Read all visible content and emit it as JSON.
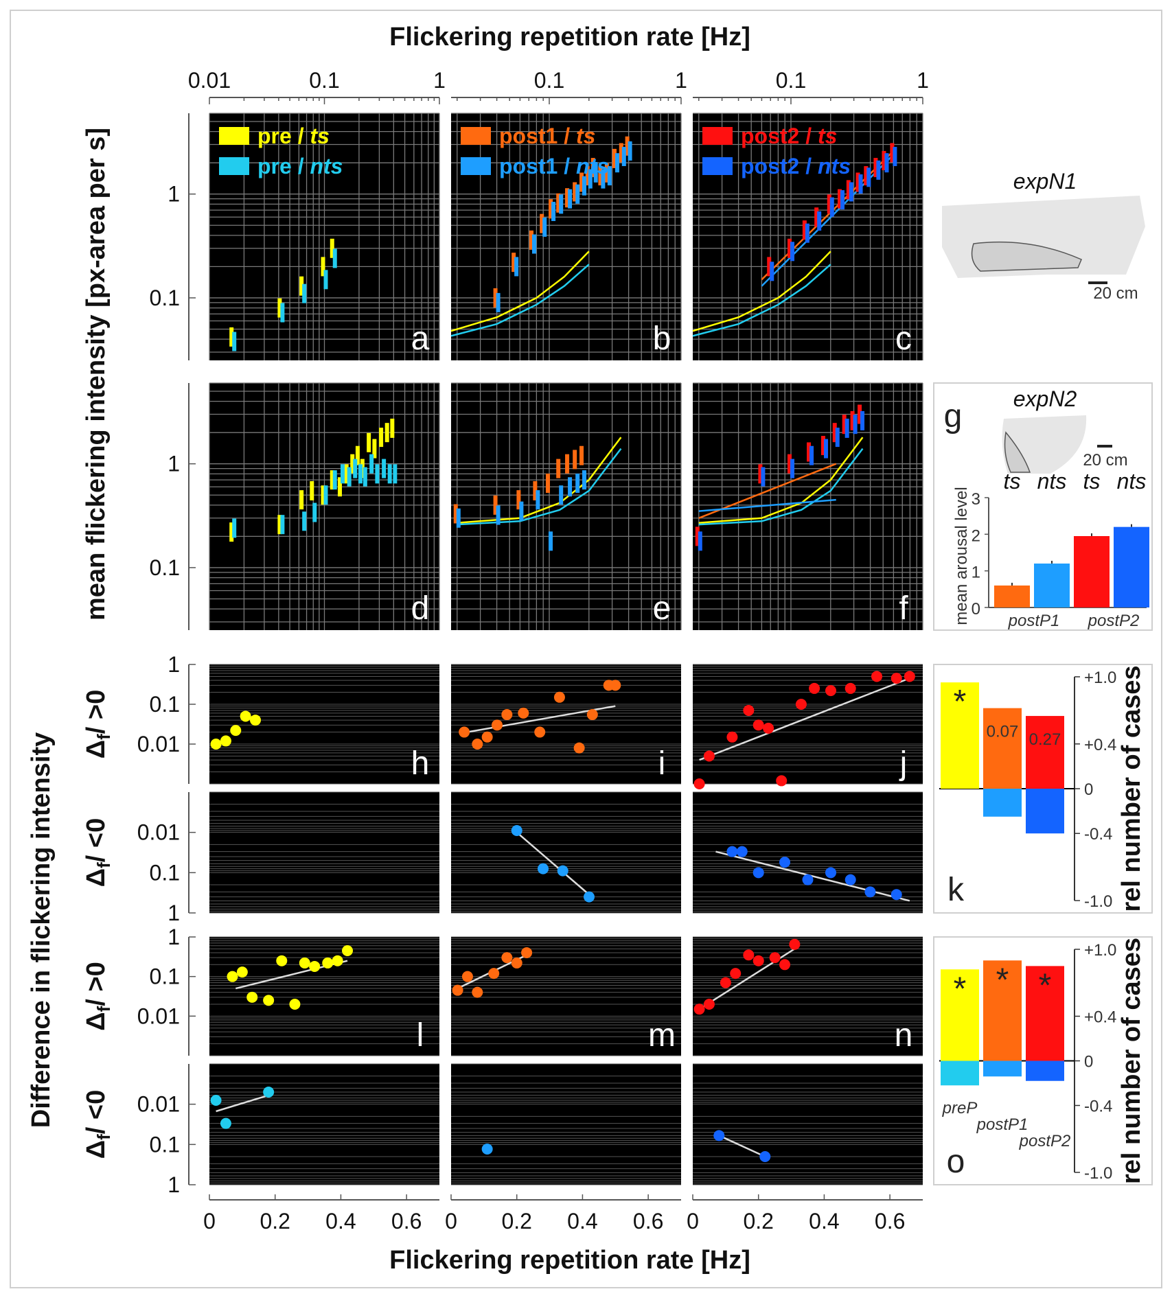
{
  "figure": {
    "top_xlabel": "Flickering repetition rate [Hz]",
    "bottom_xlabel": "Flickering repetition rate [Hz]",
    "ylabel_top": "mean flickering intensity [px-area per s]",
    "ylabel_bottom": "Difference in flickering intensity",
    "row_labels": [
      "Δf/ >0",
      "Δf/ <0",
      "Δf/ >0",
      "Δf/ <0"
    ],
    "top_ticks_col1": [
      "0.01",
      "0.1",
      "1"
    ],
    "top_ticks_col23": [
      "0.1",
      "1"
    ],
    "ytick_top": [
      "1",
      "0.1"
    ],
    "ytick_diff_pos": [
      "1",
      "0.1",
      "0.01"
    ],
    "ytick_diff_neg": [
      "0.01",
      "0.1",
      "1"
    ],
    "bottom_ticks": [
      "0",
      "0.2",
      "0.4",
      "0.6"
    ]
  },
  "colors": {
    "pre_ts": "#ffff00",
    "pre_nts": "#22ccee",
    "post1_ts": "#ff6a10",
    "post1_nts": "#1e9eff",
    "post2_ts": "#ff1010",
    "post2_nts": "#1464ff",
    "fit": "#dddddd"
  },
  "chart_data": [
    {
      "panel": "a",
      "type": "scatter",
      "xscale": "log",
      "yscale": "log",
      "legend": [
        {
          "name": "pre / ts",
          "prefix": "pre / ",
          "suffix": "ts",
          "color": "#ffff00"
        },
        {
          "name": "pre / nts",
          "prefix": "pre / ",
          "suffix": "nts",
          "color": "#22ccee"
        }
      ],
      "series": [
        {
          "name": "pre / ts",
          "x": [
            0.016,
            0.042,
            0.065,
            0.1,
            0.12
          ],
          "y": [
            0.042,
            0.08,
            0.13,
            0.2,
            0.3
          ]
        },
        {
          "name": "pre / nts",
          "x": [
            0.016,
            0.042,
            0.065,
            0.1,
            0.12
          ],
          "y": [
            0.038,
            0.072,
            0.11,
            0.15,
            0.24
          ]
        }
      ]
    },
    {
      "panel": "b",
      "type": "scatter",
      "xscale": "log",
      "yscale": "log",
      "legend": [
        {
          "name": "post1 / ts",
          "prefix": "post1 / ",
          "suffix": "ts",
          "color": "#ff6a10"
        },
        {
          "name": "post1 / nts",
          "prefix": "post1 / ",
          "suffix": "nts",
          "color": "#1e9eff"
        }
      ],
      "series": [
        {
          "name": "post1 / ts",
          "x": [
            0.04,
            0.055,
            0.075,
            0.09,
            0.105,
            0.12,
            0.14,
            0.16,
            0.18,
            0.2,
            0.22,
            0.25,
            0.28,
            0.32,
            0.36,
            0.4
          ],
          "y": [
            0.1,
            0.22,
            0.36,
            0.52,
            0.72,
            0.82,
            0.92,
            1.05,
            1.3,
            1.5,
            1.8,
            1.5,
            1.6,
            2.2,
            2.5,
            2.9
          ]
        },
        {
          "name": "post1 / nts",
          "x": [
            0.04,
            0.055,
            0.075,
            0.09,
            0.105,
            0.12,
            0.14,
            0.16,
            0.18,
            0.2,
            0.22,
            0.25,
            0.28,
            0.32,
            0.36,
            0.4
          ],
          "y": [
            0.09,
            0.2,
            0.33,
            0.48,
            0.68,
            0.8,
            0.9,
            1.0,
            1.2,
            1.4,
            1.6,
            1.4,
            1.5,
            2.0,
            2.3,
            2.6
          ]
        }
      ],
      "curves": [
        {
          "color": "#ffff00",
          "x": [
            0.018,
            0.04,
            0.08,
            0.13,
            0.2
          ],
          "y": [
            0.048,
            0.065,
            0.1,
            0.16,
            0.28
          ]
        },
        {
          "color": "#22ccee",
          "x": [
            0.018,
            0.04,
            0.08,
            0.13,
            0.2
          ],
          "y": [
            0.043,
            0.056,
            0.086,
            0.13,
            0.21
          ]
        }
      ]
    },
    {
      "panel": "c",
      "type": "scatter",
      "xscale": "log",
      "yscale": "log",
      "legend": [
        {
          "name": "post2 / ts",
          "prefix": "post2 / ",
          "suffix": "ts",
          "color": "#ff1010"
        },
        {
          "name": "post2 / nts",
          "prefix": "post2 / ",
          "suffix": "nts",
          "color": "#1464ff"
        }
      ],
      "series": [
        {
          "name": "post2 / ts",
          "x": [
            0.07,
            0.1,
            0.13,
            0.16,
            0.2,
            0.24,
            0.28,
            0.33,
            0.38,
            0.45,
            0.52,
            0.6
          ],
          "y": [
            0.2,
            0.3,
            0.45,
            0.6,
            0.8,
            0.9,
            1.1,
            1.3,
            1.5,
            1.8,
            2.1,
            2.5
          ]
        },
        {
          "name": "post2 / nts",
          "x": [
            0.07,
            0.1,
            0.13,
            0.16,
            0.2,
            0.24,
            0.28,
            0.33,
            0.38,
            0.45,
            0.52,
            0.6
          ],
          "y": [
            0.18,
            0.28,
            0.42,
            0.55,
            0.75,
            0.88,
            1.05,
            1.25,
            1.45,
            1.7,
            2.0,
            2.3
          ]
        }
      ],
      "curves": [
        {
          "color": "#ffff00",
          "x": [
            0.018,
            0.04,
            0.08,
            0.13,
            0.2
          ],
          "y": [
            0.048,
            0.065,
            0.1,
            0.16,
            0.28
          ]
        },
        {
          "color": "#22ccee",
          "x": [
            0.018,
            0.04,
            0.08,
            0.13,
            0.2
          ],
          "y": [
            0.043,
            0.056,
            0.086,
            0.13,
            0.21
          ]
        },
        {
          "color": "#ff6a10",
          "x": [
            0.06,
            0.6
          ],
          "y": [
            0.15,
            2.6
          ]
        },
        {
          "color": "#1e9eff",
          "x": [
            0.06,
            0.6
          ],
          "y": [
            0.13,
            2.4
          ]
        }
      ]
    },
    {
      "panel": "d",
      "type": "scatter",
      "xscale": "log",
      "yscale": "log",
      "series": [
        {
          "name": "pre / ts",
          "x": [
            0.016,
            0.042,
            0.065,
            0.08,
            0.1,
            0.12,
            0.14,
            0.16,
            0.18,
            0.2,
            0.22,
            0.25,
            0.28,
            0.32,
            0.36,
            0.4
          ],
          "y": [
            0.22,
            0.26,
            0.45,
            0.55,
            0.5,
            0.7,
            0.6,
            0.8,
            1.0,
            1.2,
            0.9,
            1.6,
            1.4,
            1.8,
            2.0,
            2.2
          ]
        },
        {
          "name": "pre / nts",
          "x": [
            0.016,
            0.042,
            0.065,
            0.08,
            0.1,
            0.12,
            0.14,
            0.16,
            0.18,
            0.2,
            0.22,
            0.25,
            0.28,
            0.32,
            0.36,
            0.4
          ],
          "y": [
            0.24,
            0.26,
            0.28,
            0.34,
            0.5,
            0.7,
            0.8,
            0.75,
            0.9,
            0.8,
            0.75,
            1.0,
            0.8,
            0.9,
            0.8,
            0.8
          ]
        }
      ]
    },
    {
      "panel": "e",
      "type": "scatter",
      "xscale": "log",
      "yscale": "log",
      "series": [
        {
          "name": "post1 / ts",
          "x": [
            0.02,
            0.04,
            0.06,
            0.08,
            0.1,
            0.12,
            0.14,
            0.16,
            0.18
          ],
          "y": [
            0.33,
            0.4,
            0.45,
            0.55,
            0.65,
            0.9,
            1.0,
            1.1,
            1.2
          ]
        },
        {
          "name": "post1 / nts",
          "x": [
            0.02,
            0.04,
            0.06,
            0.08,
            0.1,
            0.12,
            0.14,
            0.16,
            0.18
          ],
          "y": [
            0.3,
            0.32,
            0.35,
            0.45,
            0.18,
            0.5,
            0.6,
            0.65,
            0.7
          ]
        }
      ],
      "curves": [
        {
          "color": "#ffff00",
          "x": [
            0.02,
            0.06,
            0.12,
            0.2,
            0.35
          ],
          "y": [
            0.27,
            0.3,
            0.42,
            0.7,
            1.8
          ]
        },
        {
          "color": "#22ccee",
          "x": [
            0.02,
            0.06,
            0.12,
            0.2,
            0.35
          ],
          "y": [
            0.26,
            0.28,
            0.36,
            0.55,
            1.4
          ]
        }
      ]
    },
    {
      "panel": "f",
      "type": "scatter",
      "xscale": "log",
      "yscale": "log",
      "series": [
        {
          "name": "post2 / ts",
          "x": [
            0.02,
            0.06,
            0.1,
            0.14,
            0.18,
            0.22,
            0.26,
            0.3,
            0.34
          ],
          "y": [
            0.2,
            0.8,
            1.0,
            1.3,
            1.5,
            2.0,
            2.4,
            2.6,
            3.0
          ]
        },
        {
          "name": "post2 / nts",
          "x": [
            0.02,
            0.06,
            0.1,
            0.14,
            0.18,
            0.22,
            0.26,
            0.3,
            0.34
          ],
          "y": [
            0.18,
            0.75,
            0.9,
            1.2,
            1.4,
            1.8,
            2.2,
            2.4,
            2.6
          ]
        }
      ],
      "curves": [
        {
          "color": "#ffff00",
          "x": [
            0.02,
            0.06,
            0.12,
            0.2,
            0.35
          ],
          "y": [
            0.27,
            0.3,
            0.42,
            0.7,
            1.8
          ]
        },
        {
          "color": "#22ccee",
          "x": [
            0.02,
            0.06,
            0.12,
            0.2,
            0.35
          ],
          "y": [
            0.26,
            0.28,
            0.36,
            0.55,
            1.4
          ]
        },
        {
          "color": "#ff6a10",
          "x": [
            0.02,
            0.22
          ],
          "y": [
            0.3,
            1.0
          ]
        },
        {
          "color": "#1e9eff",
          "x": [
            0.02,
            0.22
          ],
          "y": [
            0.35,
            0.45
          ]
        }
      ]
    },
    {
      "panel": "g",
      "type": "bar",
      "title": "expN2",
      "ylabel": "mean arousal level",
      "categories": [
        "ts",
        "nts",
        "ts",
        "nts"
      ],
      "groups": [
        "postP1",
        "postP2"
      ],
      "values": [
        0.6,
        1.2,
        1.95,
        2.2
      ],
      "colors": [
        "#ff6a10",
        "#1e9eff",
        "#ff1010",
        "#1464ff"
      ],
      "ylim": [
        0,
        3
      ],
      "yticks": [
        "0",
        "1",
        "2",
        "3"
      ]
    },
    {
      "panel": "h",
      "type": "scatter",
      "color": "#ffff00",
      "x": [
        0.02,
        0.05,
        0.08,
        0.11,
        0.14
      ],
      "y": [
        0.01,
        0.012,
        0.022,
        0.05,
        0.04
      ],
      "fit": []
    },
    {
      "panel": "i",
      "type": "scatter",
      "color": "#ff6a10",
      "x": [
        0.04,
        0.08,
        0.11,
        0.14,
        0.17,
        0.22,
        0.27,
        0.33,
        0.39,
        0.43,
        0.48,
        0.5
      ],
      "y": [
        0.02,
        0.01,
        0.015,
        0.03,
        0.055,
        0.06,
        0.02,
        0.15,
        0.008,
        0.055,
        0.3,
        0.3
      ],
      "fit": [
        [
          0.05,
          0.02
        ],
        [
          0.5,
          0.09
        ]
      ]
    },
    {
      "panel": "j",
      "type": "scatter",
      "color": "#ff1010",
      "x": [
        0.02,
        0.05,
        0.12,
        0.17,
        0.2,
        0.23,
        0.27,
        0.33,
        0.37,
        0.42,
        0.48,
        0.56,
        0.62,
        0.66
      ],
      "y": [
        0.001,
        0.005,
        0.015,
        0.07,
        0.03,
        0.025,
        0.0012,
        0.1,
        0.25,
        0.22,
        0.25,
        0.5,
        0.45,
        0.5
      ],
      "fit": [
        [
          0.02,
          0.004
        ],
        [
          0.66,
          0.45
        ]
      ]
    },
    {
      "panel": "i2",
      "type": "scatter",
      "color": "#1e9eff",
      "x": [
        0.2,
        0.28,
        0.34,
        0.42
      ],
      "y": [
        0.009,
        0.08,
        0.09,
        0.4
      ],
      "fit": [
        [
          0.2,
          0.01
        ],
        [
          0.42,
          0.35
        ]
      ]
    },
    {
      "panel": "j2",
      "type": "scatter",
      "color": "#1464ff",
      "x": [
        0.12,
        0.15,
        0.2,
        0.28,
        0.35,
        0.42,
        0.48,
        0.54,
        0.62
      ],
      "y": [
        0.03,
        0.03,
        0.1,
        0.055,
        0.15,
        0.1,
        0.15,
        0.3,
        0.35
      ],
      "fit": [
        [
          0.07,
          0.03
        ],
        [
          0.66,
          0.5
        ]
      ]
    },
    {
      "panel": "l",
      "type": "scatter",
      "color": "#ffff00",
      "x": [
        0.07,
        0.1,
        0.13,
        0.18,
        0.22,
        0.26,
        0.29,
        0.32,
        0.36,
        0.39,
        0.42
      ],
      "y": [
        0.1,
        0.13,
        0.03,
        0.025,
        0.25,
        0.02,
        0.22,
        0.18,
        0.22,
        0.25,
        0.45
      ],
      "fit": [
        [
          0.08,
          0.05
        ],
        [
          0.42,
          0.25
        ]
      ]
    },
    {
      "panel": "m",
      "type": "scatter",
      "color": "#ff6a10",
      "x": [
        0.02,
        0.05,
        0.08,
        0.13,
        0.17,
        0.2,
        0.23
      ],
      "y": [
        0.045,
        0.1,
        0.04,
        0.12,
        0.3,
        0.22,
        0.4
      ],
      "fit": [
        [
          0.02,
          0.05
        ],
        [
          0.23,
          0.35
        ]
      ]
    },
    {
      "panel": "n",
      "type": "scatter",
      "color": "#ff1010",
      "x": [
        0.02,
        0.05,
        0.1,
        0.13,
        0.17,
        0.2,
        0.25,
        0.28,
        0.31
      ],
      "y": [
        0.015,
        0.02,
        0.07,
        0.12,
        0.35,
        0.25,
        0.3,
        0.2,
        0.65
      ],
      "fit": [
        [
          0.02,
          0.015
        ],
        [
          0.31,
          0.5
        ]
      ]
    },
    {
      "panel": "l2",
      "type": "scatter",
      "color": "#22ccee",
      "x": [
        0.02,
        0.05,
        0.18
      ],
      "y": [
        0.008,
        0.03,
        0.005
      ],
      "fit": [
        [
          0.02,
          0.015
        ],
        [
          0.18,
          0.006
        ]
      ]
    },
    {
      "panel": "m2",
      "type": "scatter",
      "color": "#1e9eff",
      "x": [
        0.11
      ],
      "y": [
        0.13
      ],
      "fit": []
    },
    {
      "panel": "n2",
      "type": "scatter",
      "color": "#1464ff",
      "x": [
        0.08,
        0.22
      ],
      "y": [
        0.06,
        0.2
      ],
      "fit": [
        [
          0.08,
          0.06
        ],
        [
          0.22,
          0.2
        ]
      ]
    },
    {
      "panel": "k",
      "type": "bar",
      "ylabel": "rel number of cases",
      "pos_values": [
        0.95,
        0.72,
        0.65
      ],
      "neg_values": [
        -0.25,
        -0.4
      ],
      "pos_colors": [
        "#ffff00",
        "#ff6a10",
        "#ff1010"
      ],
      "neg_colors": [
        "#1e9eff",
        "#1464ff"
      ],
      "annotations": [
        "*",
        "0.07",
        "0.27"
      ],
      "yticks": [
        "+1.0",
        "+0.4",
        "0",
        "-0.4",
        "-1.0"
      ]
    },
    {
      "panel": "o",
      "type": "bar",
      "ylabel": "rel number of cases",
      "pos_values": [
        0.82,
        0.9,
        0.85
      ],
      "neg_values": [
        -0.22,
        -0.14,
        -0.18
      ],
      "pos_colors": [
        "#ffff00",
        "#ff6a10",
        "#ff1010"
      ],
      "neg_colors": [
        "#22ccee",
        "#1e9eff",
        "#1464ff"
      ],
      "annotations": [
        "*",
        "*",
        "*"
      ],
      "categories": [
        "preP",
        "postP1",
        "postP2"
      ],
      "yticks": [
        "+1.0",
        "+0.4",
        "0",
        "-0.4",
        "-1.0"
      ]
    }
  ],
  "panel_g": {
    "arena": "expN1",
    "scale": "20 cm",
    "arena2": "expN2",
    "scale2": "20 cm",
    "labels": [
      "ts",
      "nts",
      "ts",
      "nts"
    ],
    "groups": [
      "postP1",
      "postP2"
    ],
    "ylabel": "mean arousal level"
  },
  "letters": [
    "a",
    "b",
    "c",
    "d",
    "e",
    "f",
    "g",
    "h",
    "i",
    "j",
    "k",
    "l",
    "m",
    "n",
    "o"
  ]
}
